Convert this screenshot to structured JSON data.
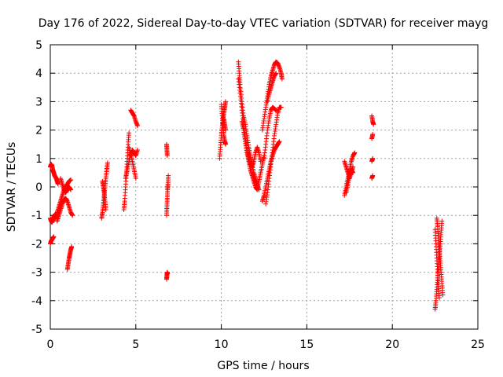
{
  "chart_data": {
    "type": "scatter",
    "title": "Day 176 of 2022, Sidereal Day-to-day VTEC variation (SDTVAR) for receiver mayg",
    "xlabel": "GPS time / hours",
    "ylabel": "SDTVAR / TECUs",
    "xlim": [
      0,
      25
    ],
    "ylim": [
      -5,
      5
    ],
    "xticks": [
      0,
      5,
      10,
      15,
      20,
      25
    ],
    "yticks": [
      -5,
      -4,
      -3,
      -2,
      -1,
      0,
      1,
      2,
      3,
      4,
      5
    ],
    "xtick_labels": [
      "0",
      "5",
      "10",
      "15",
      "20",
      "25"
    ],
    "ytick_labels": [
      "-5",
      "-4",
      "-3",
      "-2",
      "-1",
      "0",
      "1",
      "2",
      "3",
      "4",
      "5"
    ],
    "grid": true,
    "marker": "+",
    "color": "#ff0000",
    "series": [
      {
        "segments": [
          [
            [
              0.0,
              0.7
            ],
            [
              0.05,
              0.8
            ],
            [
              0.1,
              0.75
            ],
            [
              0.15,
              0.6
            ],
            [
              0.2,
              0.5
            ],
            [
              0.25,
              0.4
            ],
            [
              0.3,
              0.35
            ],
            [
              0.35,
              0.3
            ],
            [
              0.4,
              0.2
            ],
            [
              0.45,
              0.1
            ]
          ],
          [
            [
              0.0,
              -1.1
            ],
            [
              0.05,
              -1.2
            ],
            [
              0.1,
              -1.25
            ],
            [
              0.15,
              -1.15
            ],
            [
              0.2,
              -1.05
            ],
            [
              0.25,
              -1.0
            ],
            [
              0.3,
              -0.95
            ]
          ],
          [
            [
              0.0,
              -2.0
            ],
            [
              0.05,
              -1.9
            ],
            [
              0.1,
              -1.85
            ],
            [
              0.15,
              -1.8
            ],
            [
              0.2,
              -1.75
            ]
          ],
          [
            [
              0.3,
              -1.1
            ],
            [
              0.4,
              -0.9
            ],
            [
              0.5,
              -0.7
            ],
            [
              0.6,
              -0.5
            ],
            [
              0.7,
              -0.3
            ],
            [
              0.8,
              -0.1
            ],
            [
              0.9,
              0.0
            ],
            [
              1.0,
              0.1
            ],
            [
              1.1,
              0.2
            ],
            [
              1.2,
              0.25
            ]
          ],
          [
            [
              0.4,
              -1.2
            ],
            [
              0.5,
              -1.0
            ],
            [
              0.6,
              -0.8
            ],
            [
              0.7,
              -0.6
            ],
            [
              0.8,
              -0.45
            ],
            [
              0.9,
              -0.4
            ],
            [
              1.0,
              -0.5
            ],
            [
              1.1,
              -0.7
            ],
            [
              1.2,
              -0.9
            ],
            [
              1.3,
              -1.0
            ]
          ],
          [
            [
              0.6,
              0.3
            ],
            [
              0.7,
              0.1
            ],
            [
              0.8,
              -0.1
            ],
            [
              0.9,
              -0.2
            ],
            [
              1.0,
              -0.1
            ],
            [
              1.1,
              0.0
            ],
            [
              1.2,
              -0.1
            ]
          ],
          [
            [
              1.0,
              -2.9
            ],
            [
              1.05,
              -2.7
            ],
            [
              1.1,
              -2.5
            ],
            [
              1.15,
              -2.35
            ],
            [
              1.2,
              -2.2
            ],
            [
              1.25,
              -2.1
            ]
          ],
          [
            [
              3.0,
              -1.1
            ],
            [
              3.05,
              -0.9
            ],
            [
              3.1,
              -0.6
            ],
            [
              3.15,
              -0.3
            ],
            [
              3.2,
              0.0
            ],
            [
              3.25,
              0.3
            ],
            [
              3.3,
              0.6
            ],
            [
              3.35,
              0.85
            ]
          ],
          [
            [
              3.05,
              0.2
            ],
            [
              3.1,
              0.0
            ],
            [
              3.15,
              -0.2
            ],
            [
              3.2,
              -0.5
            ],
            [
              3.25,
              -0.8
            ]
          ],
          [
            [
              4.3,
              -0.8
            ],
            [
              4.35,
              -0.5
            ],
            [
              4.4,
              0.0
            ],
            [
              4.45,
              0.5
            ],
            [
              4.5,
              1.0
            ],
            [
              4.55,
              1.5
            ],
            [
              4.6,
              1.9
            ]
          ],
          [
            [
              4.4,
              0.3
            ],
            [
              4.5,
              0.6
            ],
            [
              4.6,
              0.9
            ],
            [
              4.7,
              1.2
            ],
            [
              4.8,
              0.9
            ],
            [
              4.9,
              0.6
            ],
            [
              5.0,
              0.3
            ]
          ],
          [
            [
              4.6,
              1.4
            ],
            [
              4.7,
              1.1
            ],
            [
              4.8,
              1.3
            ],
            [
              4.9,
              1.2
            ],
            [
              5.0,
              1.1
            ],
            [
              5.1,
              1.3
            ]
          ],
          [
            [
              4.7,
              2.7
            ],
            [
              4.8,
              2.6
            ],
            [
              4.9,
              2.5
            ],
            [
              5.0,
              2.3
            ],
            [
              5.1,
              2.15
            ]
          ],
          [
            [
              6.8,
              -3.25
            ],
            [
              6.82,
              -3.1
            ],
            [
              6.84,
              -3.0
            ],
            [
              6.86,
              -3.05
            ]
          ],
          [
            [
              6.8,
              1.5
            ],
            [
              6.82,
              1.3
            ],
            [
              6.84,
              1.1
            ]
          ],
          [
            [
              6.8,
              -1.0
            ],
            [
              6.82,
              -0.7
            ],
            [
              6.84,
              -0.4
            ],
            [
              6.86,
              -0.1
            ],
            [
              6.88,
              0.1
            ],
            [
              6.9,
              0.4
            ]
          ],
          [
            [
              9.9,
              1.0
            ],
            [
              9.95,
              1.4
            ],
            [
              10.0,
              1.8
            ],
            [
              10.05,
              2.1
            ],
            [
              10.1,
              2.4
            ],
            [
              10.15,
              2.6
            ],
            [
              10.2,
              2.8
            ],
            [
              10.25,
              3.0
            ]
          ],
          [
            [
              10.0,
              2.9
            ],
            [
              10.05,
              2.5
            ],
            [
              10.1,
              2.1
            ],
            [
              10.15,
              1.8
            ],
            [
              10.2,
              1.6
            ],
            [
              10.25,
              1.5
            ]
          ],
          [
            [
              10.1,
              2.2
            ],
            [
              10.15,
              2.4
            ],
            [
              10.2,
              2.2
            ],
            [
              10.25,
              2.0
            ]
          ],
          [
            [
              11.0,
              4.4
            ],
            [
              11.05,
              4.0
            ],
            [
              11.1,
              3.6
            ],
            [
              11.2,
              3.0
            ],
            [
              11.3,
              2.5
            ],
            [
              11.4,
              2.2
            ],
            [
              11.5,
              1.8
            ],
            [
              11.6,
              1.4
            ],
            [
              11.7,
              1.1
            ],
            [
              11.8,
              0.8
            ],
            [
              11.9,
              0.5
            ],
            [
              12.0,
              0.3
            ],
            [
              12.1,
              0.1
            ],
            [
              12.2,
              -0.1
            ]
          ],
          [
            [
              11.0,
              3.8
            ],
            [
              11.1,
              3.3
            ],
            [
              11.2,
              2.7
            ],
            [
              11.3,
              2.2
            ],
            [
              11.4,
              1.7
            ],
            [
              11.5,
              1.3
            ],
            [
              11.6,
              1.0
            ],
            [
              11.7,
              0.8
            ],
            [
              11.8,
              0.7
            ],
            [
              11.9,
              0.9
            ],
            [
              12.0,
              1.2
            ],
            [
              12.1,
              1.4
            ],
            [
              12.2,
              1.2
            ],
            [
              12.3,
              0.9
            ]
          ],
          [
            [
              11.2,
              2.3
            ],
            [
              11.3,
              2.0
            ],
            [
              11.4,
              1.6
            ],
            [
              11.5,
              1.2
            ],
            [
              11.6,
              0.9
            ],
            [
              11.7,
              0.6
            ],
            [
              11.8,
              0.4
            ],
            [
              11.9,
              0.2
            ],
            [
              12.0,
              0.0
            ],
            [
              12.1,
              -0.1
            ],
            [
              12.2,
              0.2
            ],
            [
              12.3,
              0.5
            ],
            [
              12.4,
              0.8
            ],
            [
              12.5,
              1.1
            ]
          ],
          [
            [
              12.4,
              -0.5
            ],
            [
              12.5,
              -0.3
            ],
            [
              12.6,
              0.0
            ],
            [
              12.7,
              0.3
            ],
            [
              12.8,
              0.6
            ],
            [
              12.9,
              0.9
            ],
            [
              13.0,
              1.1
            ],
            [
              13.1,
              1.3
            ],
            [
              13.2,
              1.4
            ],
            [
              13.3,
              1.5
            ],
            [
              13.4,
              1.6
            ]
          ],
          [
            [
              12.6,
              -0.6
            ],
            [
              12.7,
              -0.2
            ],
            [
              12.8,
              0.3
            ],
            [
              12.9,
              0.8
            ],
            [
              13.0,
              1.3
            ],
            [
              13.1,
              1.8
            ],
            [
              13.2,
              2.2
            ],
            [
              13.3,
              2.6
            ],
            [
              13.4,
              2.8
            ],
            [
              13.5,
              2.8
            ]
          ],
          [
            [
              12.5,
              1.0
            ],
            [
              12.6,
              1.5
            ],
            [
              12.7,
              2.0
            ],
            [
              12.8,
              2.4
            ],
            [
              12.9,
              2.7
            ],
            [
              13.0,
              2.8
            ],
            [
              13.1,
              2.75
            ],
            [
              13.2,
              2.7
            ]
          ],
          [
            [
              12.4,
              2.0
            ],
            [
              12.5,
              2.4
            ],
            [
              12.6,
              2.8
            ],
            [
              12.7,
              3.2
            ],
            [
              12.8,
              3.6
            ],
            [
              12.9,
              3.9
            ],
            [
              13.0,
              4.1
            ],
            [
              13.1,
              4.3
            ],
            [
              13.2,
              4.4
            ],
            [
              13.3,
              4.35
            ],
            [
              13.4,
              4.2
            ],
            [
              13.5,
              4.0
            ],
            [
              13.55,
              3.8
            ]
          ],
          [
            [
              12.7,
              3.0
            ],
            [
              12.8,
              3.3
            ],
            [
              12.9,
              3.5
            ],
            [
              13.0,
              3.7
            ],
            [
              13.1,
              3.9
            ],
            [
              13.2,
              4.0
            ]
          ],
          [
            [
              17.2,
              -0.3
            ],
            [
              17.3,
              0.0
            ],
            [
              17.4,
              0.3
            ],
            [
              17.5,
              0.6
            ],
            [
              17.6,
              0.9
            ],
            [
              17.7,
              1.1
            ],
            [
              17.8,
              1.2
            ]
          ],
          [
            [
              17.2,
              0.9
            ],
            [
              17.3,
              0.7
            ],
            [
              17.4,
              0.5
            ],
            [
              17.5,
              0.3
            ],
            [
              17.6,
              0.5
            ],
            [
              17.7,
              0.7
            ]
          ],
          [
            [
              17.3,
              -0.2
            ],
            [
              17.4,
              0.1
            ],
            [
              17.5,
              0.4
            ],
            [
              17.6,
              0.6
            ],
            [
              17.7,
              0.5
            ]
          ],
          [
            [
              18.8,
              2.5
            ],
            [
              18.85,
              2.3
            ],
            [
              18.9,
              2.2
            ]
          ],
          [
            [
              18.8,
              1.7
            ],
            [
              18.85,
              1.85
            ]
          ],
          [
            [
              18.8,
              0.9
            ],
            [
              18.85,
              1.0
            ]
          ],
          [
            [
              18.8,
              0.3
            ],
            [
              18.85,
              0.4
            ]
          ],
          [
            [
              22.5,
              -4.3
            ],
            [
              22.55,
              -4.0
            ],
            [
              22.6,
              -3.6
            ],
            [
              22.65,
              -3.2
            ],
            [
              22.7,
              -2.8
            ],
            [
              22.75,
              -2.4
            ],
            [
              22.8,
              -2.0
            ],
            [
              22.85,
              -1.6
            ],
            [
              22.9,
              -1.2
            ]
          ],
          [
            [
              22.6,
              -1.1
            ],
            [
              22.65,
              -1.4
            ],
            [
              22.7,
              -1.8
            ],
            [
              22.75,
              -2.2
            ],
            [
              22.8,
              -2.6
            ],
            [
              22.85,
              -3.0
            ],
            [
              22.9,
              -3.4
            ],
            [
              22.95,
              -3.8
            ]
          ],
          [
            [
              22.5,
              -1.5
            ],
            [
              22.55,
              -2.0
            ],
            [
              22.6,
              -2.5
            ],
            [
              22.65,
              -3.0
            ],
            [
              22.7,
              -3.5
            ],
            [
              22.75,
              -3.9
            ]
          ]
        ]
      }
    ]
  }
}
